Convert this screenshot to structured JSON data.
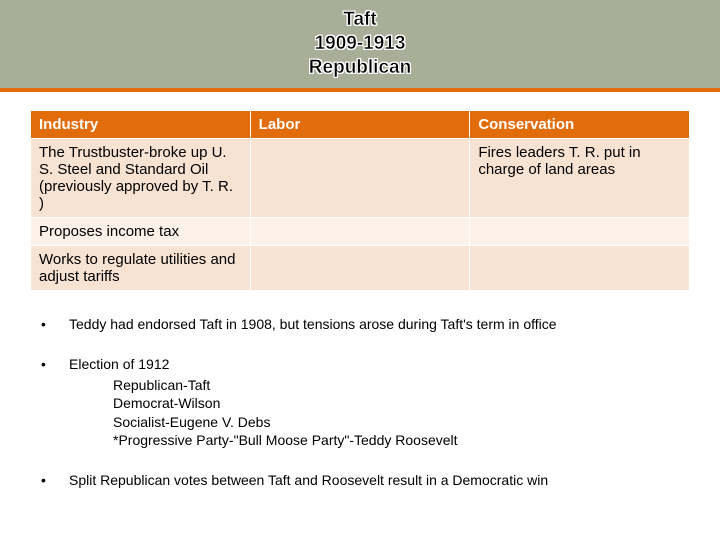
{
  "title": {
    "line1": "Taft",
    "line2": "1909-1913",
    "line3": "Republican",
    "band_bg": "#a9ae99",
    "underline_color": "#e36c0a",
    "text_color": "#000000",
    "outline_color": "#ffffff",
    "fontsize": 19
  },
  "table": {
    "header_bg": "#e36c0a",
    "header_fg": "#ffffff",
    "row_bg_odd": "#f8e3d3",
    "row_bg_even": "#fcf1e9",
    "border_color": "#ffffff",
    "fontsize": 15,
    "columns": [
      {
        "key": "industry",
        "label": "Industry",
        "width_pct": 33.3
      },
      {
        "key": "labor",
        "label": "Labor",
        "width_pct": 33.3
      },
      {
        "key": "conservation",
        "label": "Conservation",
        "width_pct": 33.3
      }
    ],
    "rows": [
      {
        "industry": "The Trustbuster-broke up U. S. Steel and Standard Oil (previously approved by T. R. )",
        "labor": "",
        "conservation": "Fires leaders T. R. put in charge of land areas"
      },
      {
        "industry": "Proposes income tax",
        "labor": "",
        "conservation": ""
      },
      {
        "industry": "Works to regulate utilities and adjust tariffs",
        "labor": "",
        "conservation": ""
      }
    ]
  },
  "notes": {
    "fontsize": 14,
    "items": [
      {
        "text": "Teddy had endorsed Taft in 1908, but tensions arose during Taft's term in office",
        "sub": []
      },
      {
        "text": "Election of 1912",
        "sub": [
          "Republican-Taft",
          "Democrat-Wilson",
          "Socialist-Eugene V. Debs",
          "*Progressive Party-\"Bull Moose Party\"-Teddy Roosevelt"
        ]
      }
    ],
    "cutoff": "Split Republican votes between Taft and Roosevelt result in a Democratic win"
  }
}
